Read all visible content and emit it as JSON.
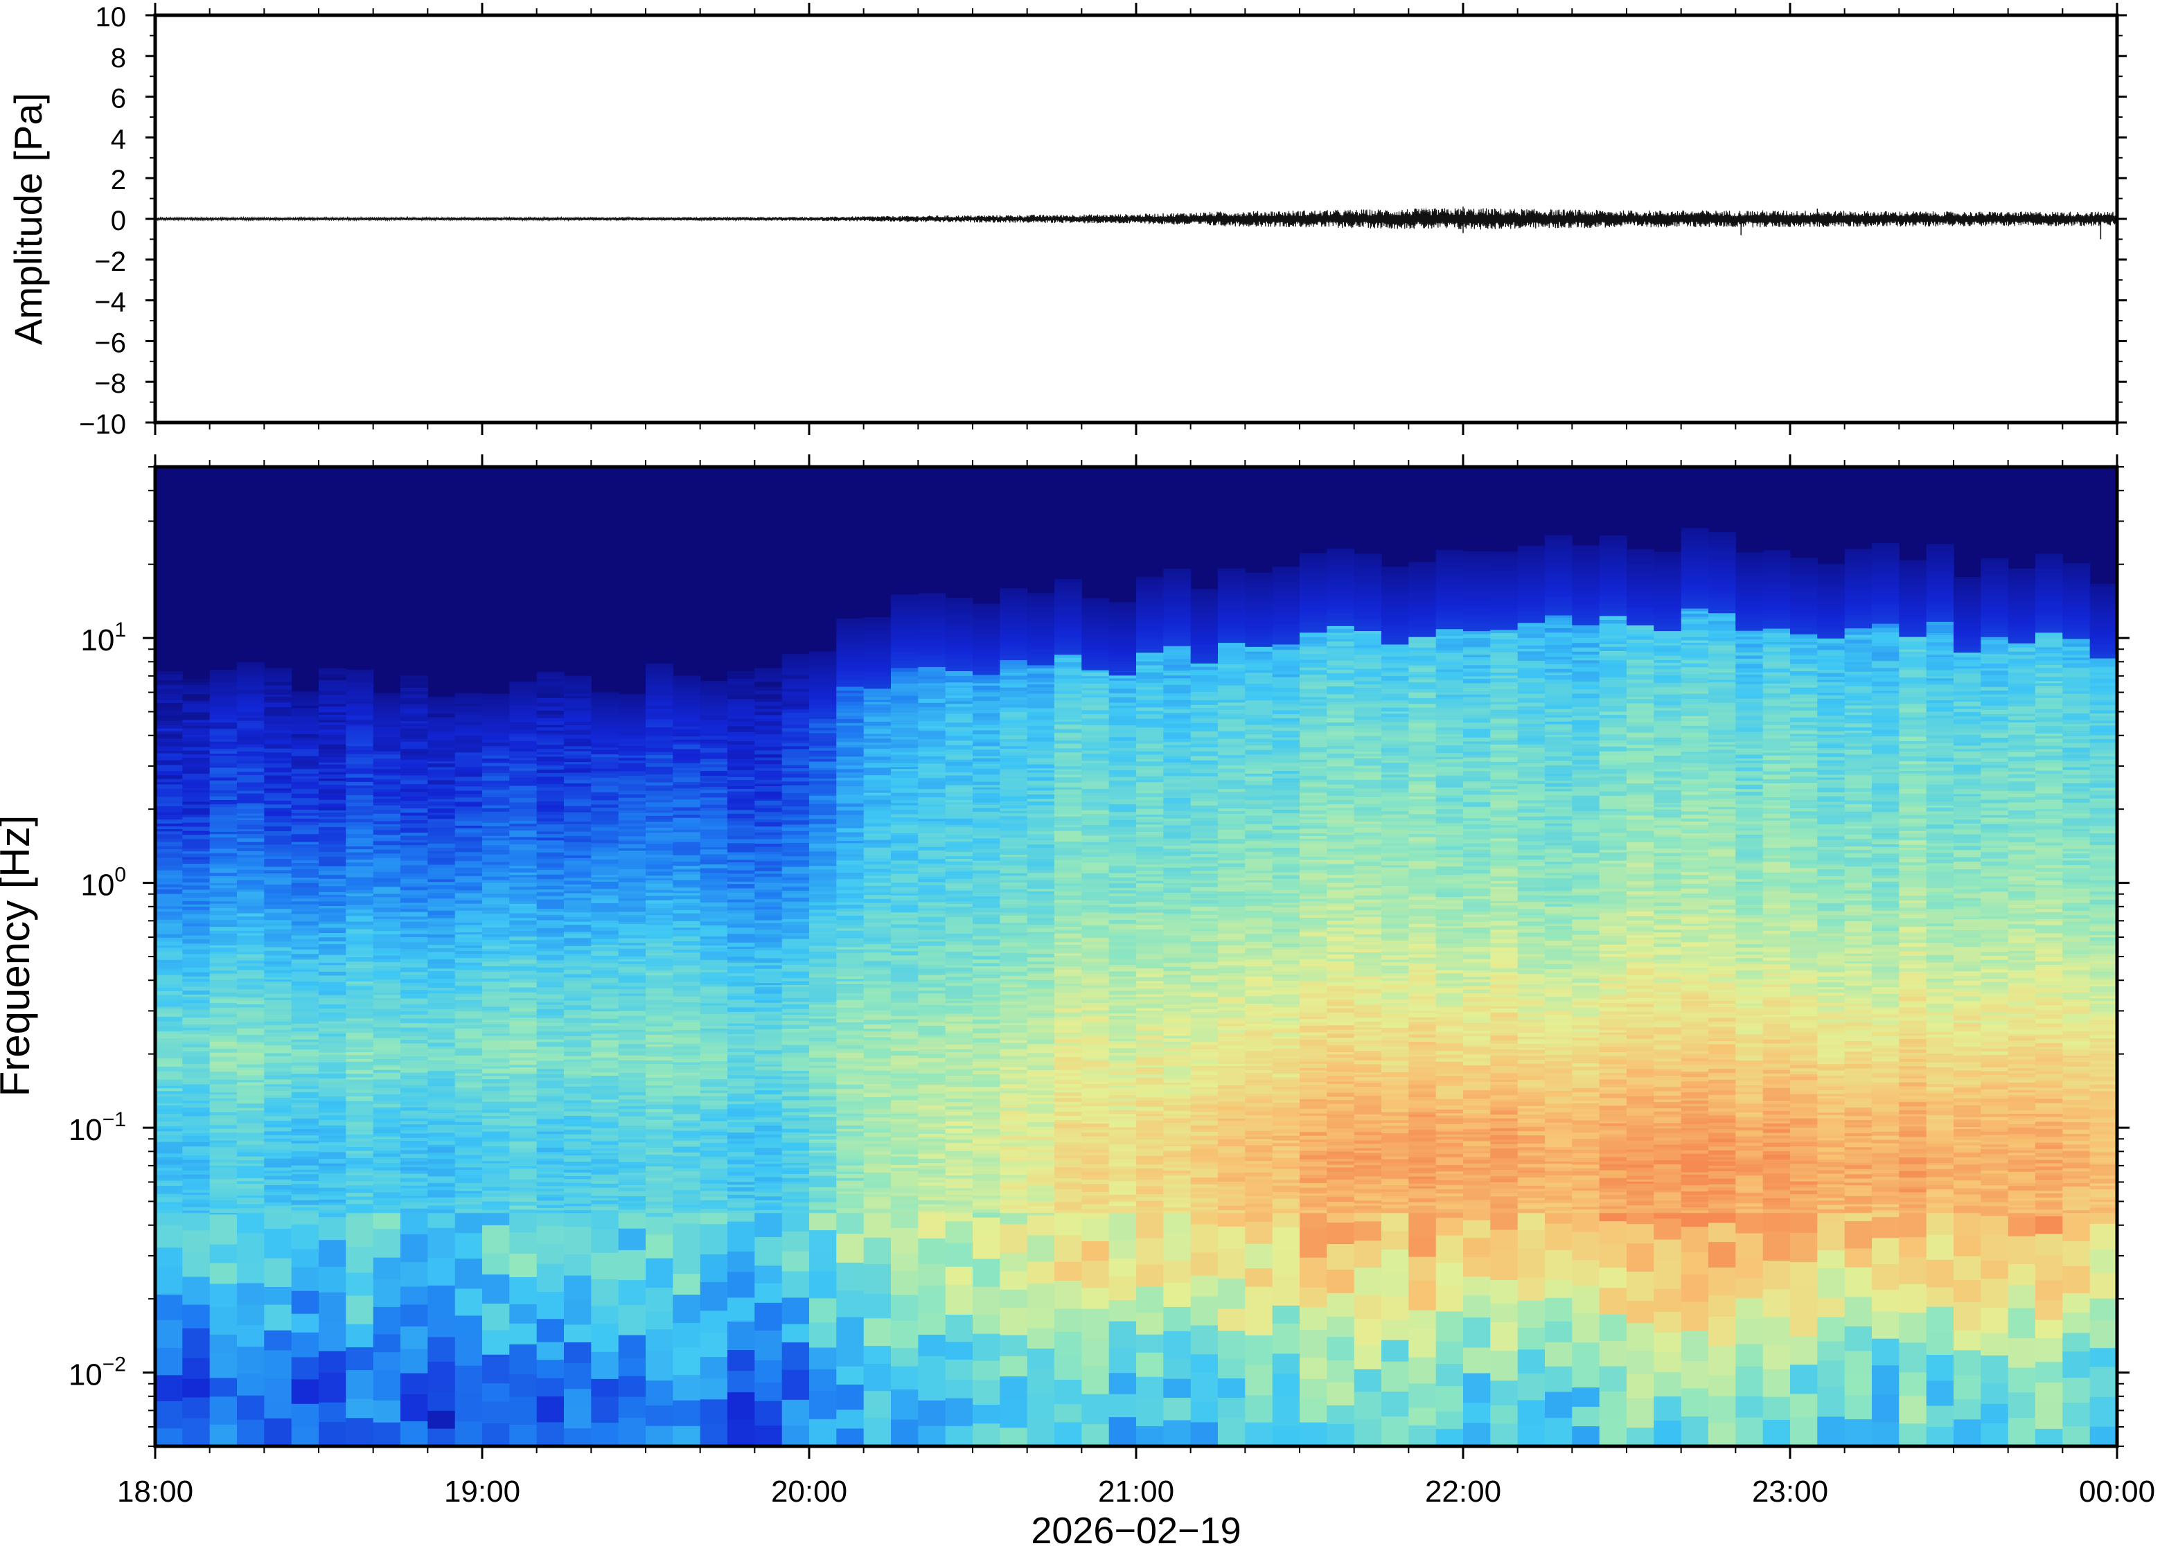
{
  "chart_data": [
    {
      "type": "line",
      "panel": "waveform",
      "ylabel": "Amplitude [Pa]",
      "ylim": [
        -10,
        10
      ],
      "ytick_values": [
        -10,
        -8,
        -6,
        -4,
        -2,
        0,
        2,
        4,
        6,
        8,
        10
      ],
      "ytick_labels": [
        "−10",
        "−8",
        "−6",
        "−4",
        "−2",
        "0",
        "2",
        "4",
        "6",
        "8",
        "10"
      ],
      "x_start": "2026-02-19T18:00",
      "x_end": "2026-02-20T00:00",
      "envelope": {
        "time": [
          "18:00",
          "19:00",
          "19:30",
          "20:00",
          "20:15",
          "20:30",
          "21:00",
          "21:15",
          "21:30",
          "22:00",
          "22:30",
          "23:00",
          "23:30",
          "00:00"
        ],
        "amplitude": [
          0.05,
          0.06,
          0.07,
          0.08,
          0.12,
          0.15,
          0.2,
          0.3,
          0.35,
          0.45,
          0.35,
          0.35,
          0.3,
          0.3
        ]
      },
      "spikes": [
        {
          "time": "22:00",
          "value": 0.6
        },
        {
          "time": "22:00",
          "value": -0.7
        },
        {
          "time": "22:51",
          "value": -0.8
        },
        {
          "time": "23:05",
          "value": 0.5
        },
        {
          "time": "23:57",
          "value": -1.0
        }
      ]
    },
    {
      "type": "heatmap",
      "panel": "spectrogram",
      "ylabel": "Frequency [Hz]",
      "yscale": "log",
      "ylim": [
        0.005,
        50
      ],
      "ytick_values": [
        0.01,
        0.1,
        1,
        10
      ],
      "ytick_labels": [
        {
          "base": "10",
          "exp": "−2"
        },
        {
          "base": "10",
          "exp": "−1"
        },
        {
          "base": "10",
          "exp": "0"
        },
        {
          "base": "10",
          "exp": "1"
        }
      ],
      "xlabel": "2026−02−19",
      "xtick_values": [
        "18:00",
        "19:00",
        "20:00",
        "21:00",
        "22:00",
        "23:00",
        "00:00"
      ],
      "xtick_labels": [
        "18:00",
        "19:00",
        "20:00",
        "21:00",
        "22:00",
        "23:00",
        "00:00"
      ],
      "colormap": [
        "#0b0a78",
        "#1226d6",
        "#1f7ff2",
        "#3fc7f4",
        "#8ee6c0",
        "#e4ef94",
        "#f7c474",
        "#f58a52"
      ],
      "time": [
        "18:00",
        "18:30",
        "19:00",
        "19:30",
        "20:00",
        "20:15",
        "20:30",
        "21:00",
        "21:30",
        "22:00",
        "22:30",
        "23:00",
        "23:30",
        "00:00"
      ],
      "noise_ceiling_hz": [
        7,
        7,
        6,
        7,
        8,
        13,
        14,
        16,
        20,
        24,
        26,
        23,
        21,
        18
      ],
      "frequency_profile_hz": [
        0.005,
        0.01,
        0.02,
        0.04,
        0.07,
        0.1,
        0.2,
        0.5,
        1,
        2,
        5,
        10,
        20,
        50
      ],
      "level": [
        [
          1.5,
          1.8,
          2.8,
          3.2,
          3.0,
          3.1,
          3.9,
          3.0,
          2.0,
          1.2,
          0.7,
          0.2,
          0.0,
          0.0
        ],
        [
          1.6,
          1.9,
          2.8,
          3.2,
          3.0,
          3.1,
          3.8,
          3.0,
          2.1,
          1.3,
          0.8,
          0.2,
          0.0,
          0.0
        ],
        [
          1.6,
          1.8,
          2.9,
          3.3,
          3.1,
          3.2,
          3.9,
          3.1,
          2.2,
          1.4,
          0.8,
          0.2,
          0.0,
          0.0
        ],
        [
          1.7,
          2.0,
          2.9,
          3.3,
          3.1,
          3.2,
          3.8,
          3.1,
          2.2,
          1.5,
          0.9,
          0.3,
          0.0,
          0.0
        ],
        [
          1.8,
          2.0,
          3.0,
          3.4,
          3.2,
          3.3,
          3.8,
          3.1,
          2.3,
          1.6,
          1.0,
          0.3,
          0.0,
          0.0
        ],
        [
          3.0,
          3.2,
          4.2,
          4.6,
          4.6,
          4.6,
          4.5,
          3.8,
          3.4,
          3.2,
          2.8,
          1.8,
          0.4,
          0.0
        ],
        [
          3.2,
          3.4,
          4.4,
          4.8,
          4.8,
          4.8,
          4.6,
          3.9,
          3.5,
          3.3,
          3.0,
          2.2,
          0.6,
          0.0
        ],
        [
          3.0,
          3.4,
          4.8,
          5.4,
          5.6,
          5.4,
          5.0,
          4.4,
          3.9,
          3.6,
          3.2,
          2.6,
          0.9,
          0.0
        ],
        [
          3.2,
          3.6,
          5.0,
          5.9,
          6.3,
          6.2,
          5.4,
          4.6,
          4.1,
          3.8,
          3.4,
          2.8,
          1.4,
          0.0
        ],
        [
          3.4,
          3.8,
          5.2,
          6.1,
          6.6,
          6.5,
          5.6,
          4.7,
          4.2,
          3.9,
          3.5,
          3.0,
          1.8,
          0.2
        ],
        [
          3.3,
          3.8,
          5.2,
          6.2,
          6.6,
          6.4,
          5.6,
          4.7,
          4.2,
          3.9,
          3.5,
          3.0,
          1.9,
          0.3
        ],
        [
          3.4,
          3.8,
          5.3,
          6.3,
          6.7,
          6.5,
          5.6,
          4.7,
          4.2,
          3.9,
          3.5,
          3.0,
          1.8,
          0.2
        ],
        [
          3.3,
          3.7,
          5.1,
          6.1,
          6.4,
          6.2,
          5.5,
          4.6,
          4.1,
          3.8,
          3.4,
          2.9,
          1.6,
          0.1
        ],
        [
          3.2,
          3.6,
          5.0,
          5.9,
          6.2,
          6.0,
          5.4,
          4.5,
          4.0,
          3.7,
          3.3,
          2.8,
          1.5,
          0.1
        ]
      ]
    }
  ]
}
